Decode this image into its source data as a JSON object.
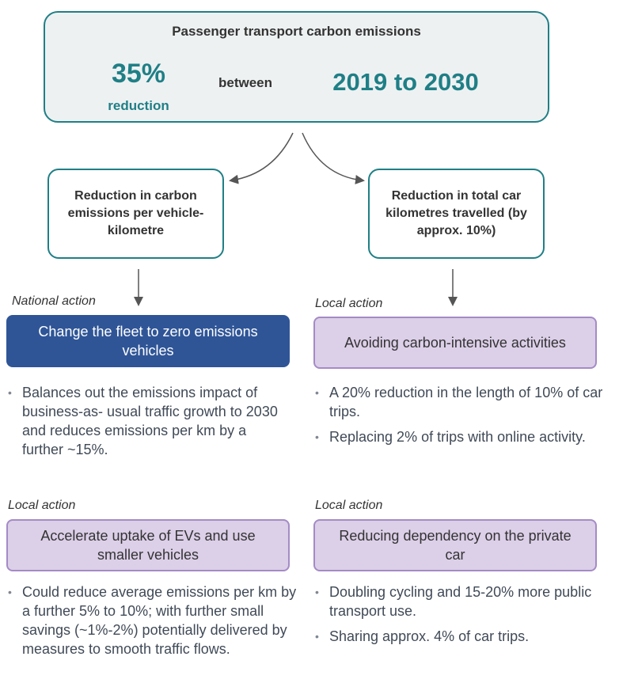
{
  "header": {
    "title": "Passenger transport carbon emissions",
    "stat_value": "35%",
    "stat_label": "reduction",
    "connector": "between",
    "period": "2019 to 2030"
  },
  "branches": [
    {
      "label": "Reduction in carbon emissions per vehicle-kilometre"
    },
    {
      "label": "Reduction in total car kilometres travelled (by approx. 10%)"
    }
  ],
  "actions": [
    {
      "scope": "National action",
      "title": "Change the fleet to zero emissions vehicles",
      "bullets": [
        "Balances out the emissions impact of business-as- usual traffic growth to 2030 and reduces emissions per km by a further ~15%."
      ]
    },
    {
      "scope": "Local action",
      "title": "Avoiding carbon-intensive activities",
      "bullets": [
        "A 20% reduction in the length of 10% of car trips.",
        "Replacing 2% of trips with online activity."
      ]
    },
    {
      "scope": "Local action",
      "title": "Accelerate uptake of EVs and use smaller vehicles",
      "bullets": [
        "Could reduce average emissions per km by a further 5% to 10%; with further small savings (~1%-2%) potentially delivered by measures to smooth traffic flows."
      ]
    },
    {
      "scope": "Local action",
      "title": "Reducing dependency on the private car",
      "bullets": [
        "Doubling cycling and 15-20% more public transport use.",
        "Sharing approx. 4% of car trips."
      ]
    }
  ]
}
